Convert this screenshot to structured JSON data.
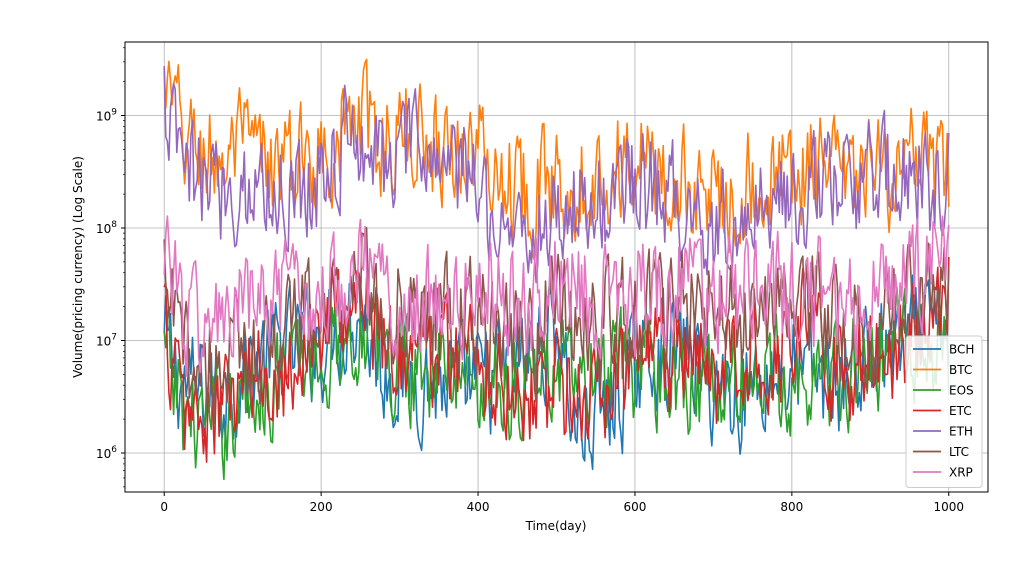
{
  "chart_data": {
    "type": "line",
    "title": "",
    "xlabel": "Time(day)",
    "ylabel": "Volume(pricing currency) (Log Scale)",
    "yscale": "log",
    "xlim": [
      -50,
      1050
    ],
    "ylim": [
      450000,
      4500000000
    ],
    "grid": true,
    "legend_position": "lower-right",
    "x_ticks": [
      {
        "value": 0,
        "label": "0"
      },
      {
        "value": 200,
        "label": "200"
      },
      {
        "value": 400,
        "label": "400"
      },
      {
        "value": 600,
        "label": "600"
      },
      {
        "value": 800,
        "label": "800"
      },
      {
        "value": 1000,
        "label": "1000"
      }
    ],
    "y_ticks": [
      {
        "value": 1000000,
        "base": "10",
        "exp": "6"
      },
      {
        "value": 10000000,
        "base": "10",
        "exp": "7"
      },
      {
        "value": 100000000,
        "base": "10",
        "exp": "8"
      },
      {
        "value": 1000000000,
        "base": "10",
        "exp": "9"
      }
    ],
    "series": [
      {
        "name": "BCH",
        "color": "#1f77b4",
        "x": [
          0,
          25,
          50,
          75,
          100,
          125,
          150,
          175,
          200,
          225,
          250,
          275,
          300,
          325,
          350,
          375,
          400,
          425,
          450,
          475,
          500,
          525,
          550,
          575,
          600,
          625,
          650,
          675,
          700,
          725,
          750,
          775,
          800,
          825,
          850,
          875,
          900,
          925,
          950,
          975,
          1000
        ],
        "values": [
          9000000,
          4000000,
          3200000,
          3500000,
          5000000,
          7000000,
          8000000,
          9000000,
          10000000,
          14000000,
          20000000,
          6000000,
          5000000,
          4500000,
          4200000,
          3800000,
          4000000,
          5000000,
          6000000,
          8000000,
          15000000,
          1500000,
          2000000,
          3000000,
          5000000,
          9000000,
          8000000,
          7000000,
          4000000,
          3500000,
          4000000,
          5000000,
          5500000,
          5000000,
          4500000,
          5000000,
          7000000,
          9000000,
          10000000,
          12000000,
          14000000
        ]
      },
      {
        "name": "BTC",
        "color": "#ff7f0e",
        "x": [
          0,
          25,
          50,
          75,
          100,
          125,
          150,
          175,
          200,
          225,
          250,
          275,
          300,
          325,
          350,
          375,
          400,
          425,
          450,
          475,
          500,
          525,
          550,
          575,
          600,
          625,
          650,
          675,
          700,
          725,
          750,
          775,
          800,
          825,
          850,
          875,
          900,
          925,
          950,
          975,
          1000
        ],
        "values": [
          1800000000,
          600000000,
          450000000,
          400000000,
          500000000,
          380000000,
          350000000,
          400000000,
          500000000,
          700000000,
          900000000,
          600000000,
          650000000,
          700000000,
          550000000,
          500000000,
          500000000,
          300000000,
          250000000,
          220000000,
          250000000,
          300000000,
          280000000,
          350000000,
          400000000,
          300000000,
          250000000,
          220000000,
          200000000,
          220000000,
          250000000,
          250000000,
          300000000,
          350000000,
          300000000,
          250000000,
          300000000,
          320000000,
          350000000,
          300000000,
          280000000
        ]
      },
      {
        "name": "EOS",
        "color": "#2ca02c",
        "x": [
          0,
          25,
          50,
          75,
          100,
          125,
          150,
          175,
          200,
          225,
          250,
          275,
          300,
          325,
          350,
          375,
          400,
          425,
          450,
          475,
          500,
          525,
          550,
          575,
          600,
          625,
          650,
          675,
          700,
          725,
          750,
          775,
          800,
          825,
          850,
          875,
          900,
          925,
          950,
          975,
          1000
        ],
        "values": [
          7000000,
          2500000,
          1800000,
          2000000,
          3000000,
          4000000,
          5000000,
          6000000,
          7000000,
          10000000,
          14000000,
          7000000,
          6000000,
          6500000,
          5500000,
          5000000,
          5000000,
          4500000,
          4000000,
          4500000,
          6000000,
          4000000,
          4200000,
          5000000,
          6000000,
          5500000,
          5000000,
          4500000,
          4000000,
          4200000,
          5000000,
          5000000,
          5500000,
          5000000,
          4500000,
          5500000,
          7000000,
          8000000,
          9000000,
          10000000,
          9000000
        ]
      },
      {
        "name": "ETC",
        "color": "#d62728",
        "x": [
          0,
          25,
          50,
          75,
          100,
          125,
          150,
          175,
          200,
          225,
          250,
          275,
          300,
          325,
          350,
          375,
          400,
          425,
          450,
          475,
          500,
          525,
          550,
          575,
          600,
          625,
          650,
          675,
          700,
          725,
          750,
          775,
          800,
          825,
          850,
          875,
          900,
          925,
          950,
          975,
          1000
        ],
        "values": [
          15000000,
          2200000,
          2000000,
          2500000,
          3500000,
          5000000,
          6000000,
          8000000,
          12000000,
          18000000,
          25000000,
          10000000,
          9000000,
          9500000,
          9000000,
          8000000,
          7000000,
          5000000,
          4000000,
          3500000,
          4500000,
          3000000,
          3200000,
          4000000,
          6000000,
          7000000,
          6500000,
          6000000,
          5000000,
          6000000,
          8000000,
          9000000,
          12000000,
          20000000,
          6000000,
          5000000,
          7000000,
          9000000,
          12000000,
          20000000,
          30000000
        ]
      },
      {
        "name": "ETH",
        "color": "#9467bd",
        "x": [
          0,
          25,
          50,
          75,
          100,
          125,
          150,
          175,
          200,
          225,
          250,
          275,
          300,
          325,
          350,
          375,
          400,
          425,
          450,
          475,
          500,
          525,
          550,
          575,
          600,
          625,
          650,
          675,
          700,
          725,
          750,
          775,
          800,
          825,
          850,
          875,
          900,
          925,
          950,
          975,
          1000
        ],
        "values": [
          1200000000,
          300000000,
          250000000,
          220000000,
          250000000,
          230000000,
          200000000,
          250000000,
          300000000,
          500000000,
          700000000,
          400000000,
          450000000,
          500000000,
          400000000,
          300000000,
          250000000,
          120000000,
          100000000,
          90000000,
          120000000,
          180000000,
          150000000,
          200000000,
          300000000,
          200000000,
          180000000,
          150000000,
          110000000,
          120000000,
          150000000,
          180000000,
          200000000,
          250000000,
          220000000,
          200000000,
          250000000,
          280000000,
          300000000,
          250000000,
          300000000
        ]
      },
      {
        "name": "LTC",
        "color": "#8c564b",
        "x": [
          0,
          25,
          50,
          75,
          100,
          125,
          150,
          175,
          200,
          225,
          250,
          275,
          300,
          325,
          350,
          375,
          400,
          425,
          450,
          475,
          500,
          525,
          550,
          575,
          600,
          625,
          650,
          675,
          700,
          725,
          750,
          775,
          800,
          825,
          850,
          875,
          900,
          925,
          950,
          975,
          1000
        ],
        "values": [
          30000000,
          7000000,
          6000000,
          6500000,
          8000000,
          10000000,
          12000000,
          14000000,
          16000000,
          30000000,
          50000000,
          20000000,
          18000000,
          19000000,
          17000000,
          16000000,
          15000000,
          12000000,
          11000000,
          12000000,
          20000000,
          15000000,
          14000000,
          15000000,
          18000000,
          20000000,
          22000000,
          20000000,
          17000000,
          18000000,
          20000000,
          19000000,
          18000000,
          20000000,
          15000000,
          14000000,
          16000000,
          18000000,
          20000000,
          25000000,
          28000000
        ]
      },
      {
        "name": "XRP",
        "color": "#e377c2",
        "x": [
          0,
          25,
          50,
          75,
          100,
          125,
          150,
          175,
          200,
          225,
          250,
          275,
          300,
          325,
          350,
          375,
          400,
          425,
          450,
          475,
          500,
          525,
          550,
          575,
          600,
          625,
          650,
          675,
          700,
          725,
          750,
          775,
          800,
          825,
          850,
          875,
          900,
          925,
          950,
          975,
          1000
        ],
        "values": [
          100000000,
          15000000,
          13000000,
          14000000,
          18000000,
          22000000,
          20000000,
          22000000,
          25000000,
          40000000,
          60000000,
          25000000,
          22000000,
          24000000,
          23000000,
          20000000,
          22000000,
          24000000,
          25000000,
          28000000,
          45000000,
          30000000,
          25000000,
          26000000,
          28000000,
          30000000,
          32000000,
          30000000,
          25000000,
          26000000,
          28000000,
          27000000,
          25000000,
          28000000,
          24000000,
          22000000,
          25000000,
          28000000,
          30000000,
          45000000,
          50000000
        ]
      }
    ]
  }
}
